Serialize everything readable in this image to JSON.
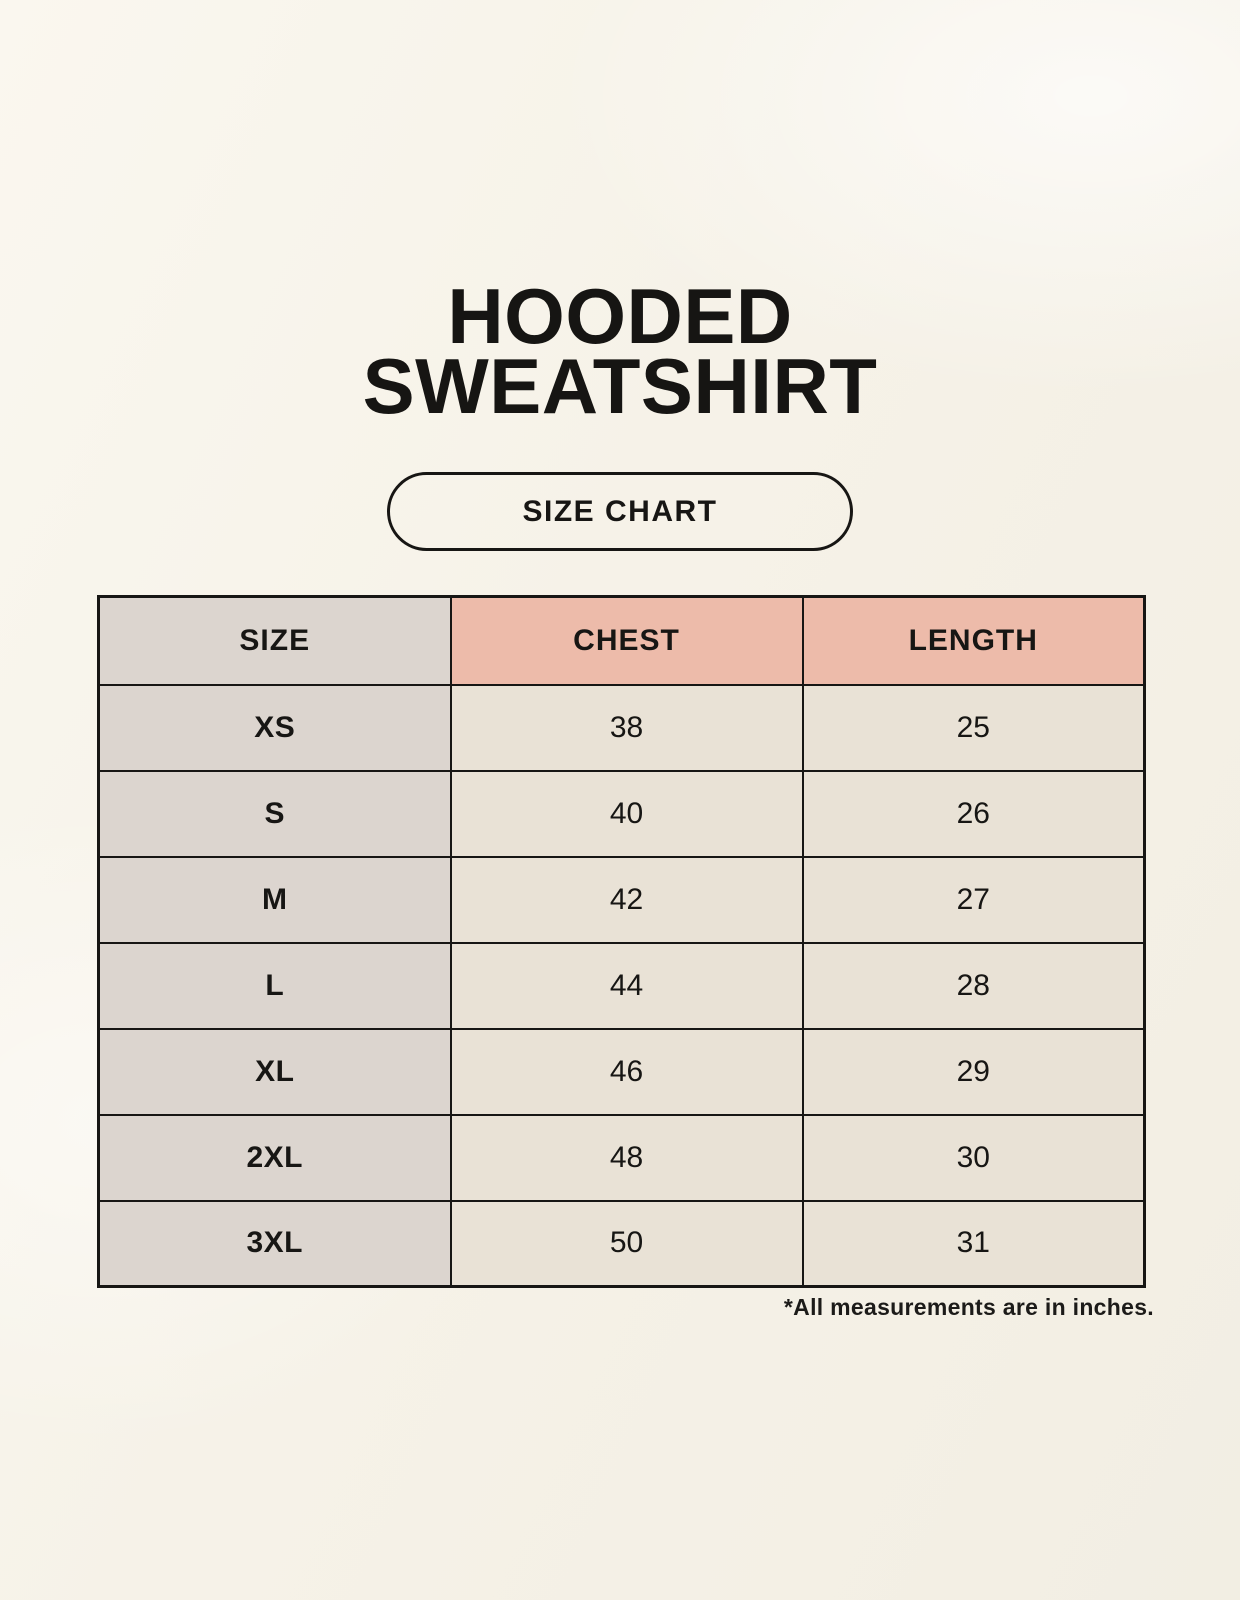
{
  "page": {
    "title_line1": "HOODED",
    "title_line2": "SWEATSHIRT",
    "badge_label": "SIZE CHART",
    "footnote": "*All measurements are in inches."
  },
  "table": {
    "headers": [
      "SIZE",
      "CHEST",
      "LENGTH"
    ],
    "rows": [
      {
        "size": "XS",
        "chest": "38",
        "length": "25"
      },
      {
        "size": "S",
        "chest": "40",
        "length": "26"
      },
      {
        "size": "M",
        "chest": "42",
        "length": "27"
      },
      {
        "size": "L",
        "chest": "44",
        "length": "28"
      },
      {
        "size": "XL",
        "chest": "46",
        "length": "29"
      },
      {
        "size": "2XL",
        "chest": "48",
        "length": "30"
      },
      {
        "size": "3XL",
        "chest": "50",
        "length": "31"
      }
    ]
  },
  "colors": {
    "background": "#f6f2e8",
    "header_accent": "#edbbaa",
    "size_column": "#dcd5cf",
    "value_cell": "#e9e2d6",
    "border": "#171614",
    "text": "#171614"
  },
  "chart_data": {
    "type": "table",
    "title": "HOODED SWEATSHIRT — SIZE CHART",
    "columns": [
      "SIZE",
      "CHEST",
      "LENGTH"
    ],
    "rows": [
      [
        "XS",
        38,
        25
      ],
      [
        "S",
        40,
        26
      ],
      [
        "M",
        42,
        27
      ],
      [
        "L",
        44,
        28
      ],
      [
        "XL",
        46,
        29
      ],
      [
        "2XL",
        48,
        30
      ],
      [
        "3XL",
        50,
        31
      ]
    ],
    "units": "inches"
  }
}
